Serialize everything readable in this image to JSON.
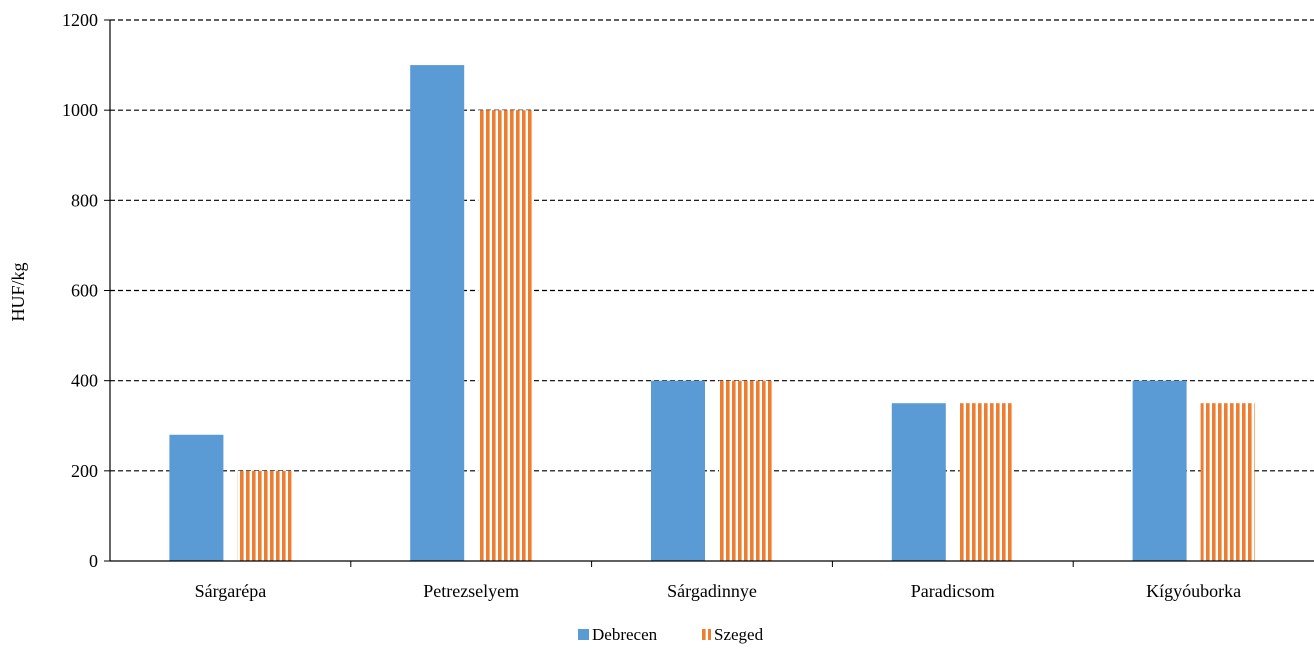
{
  "chart_data": {
    "type": "bar",
    "title": "",
    "xlabel": "",
    "ylabel": "HUF/kg",
    "ylim": [
      0,
      1200
    ],
    "yticks": [
      0,
      200,
      400,
      600,
      800,
      1000,
      1200
    ],
    "grid": true,
    "legend_position": "bottom",
    "categories": [
      "Sárgarépa",
      "Petrezselyem",
      "Sárgadinnye",
      "Paradicsom",
      "Kígyóuborka"
    ],
    "series": [
      {
        "name": "Debrecen",
        "values": [
          280,
          1100,
          400,
          350,
          400
        ],
        "color": "#5B9BD5",
        "pattern": "solid"
      },
      {
        "name": "Szeged",
        "values": [
          200,
          1000,
          400,
          350,
          350
        ],
        "color": "#ED7D31",
        "pattern": "vertical-stripes"
      }
    ]
  }
}
